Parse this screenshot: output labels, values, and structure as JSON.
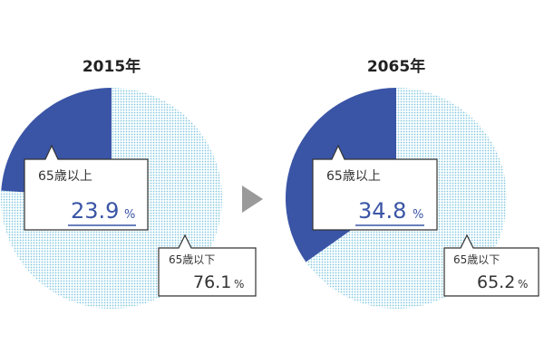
{
  "chart_data": [
    {
      "type": "pie",
      "title": "2015年",
      "slices": [
        {
          "label": "65歳以上",
          "value": 23.9,
          "unit": "%",
          "color": "#3a55a6"
        },
        {
          "label": "65歳以下",
          "value": 76.1,
          "unit": "%",
          "color": "#7ec6de"
        }
      ]
    },
    {
      "type": "pie",
      "title": "2065年",
      "slices": [
        {
          "label": "65歳以上",
          "value": 34.8,
          "unit": "%",
          "color": "#3a55a6"
        },
        {
          "label": "65歳以下",
          "value": 65.2,
          "unit": "%",
          "color": "#7ec6de"
        }
      ]
    }
  ],
  "colors": {
    "older_slice": "#3a55a6",
    "dotted_slice": "#7ec6de",
    "arrow": "#9a9a9a"
  },
  "icons": {
    "transition_arrow": "right-triangle-icon"
  }
}
